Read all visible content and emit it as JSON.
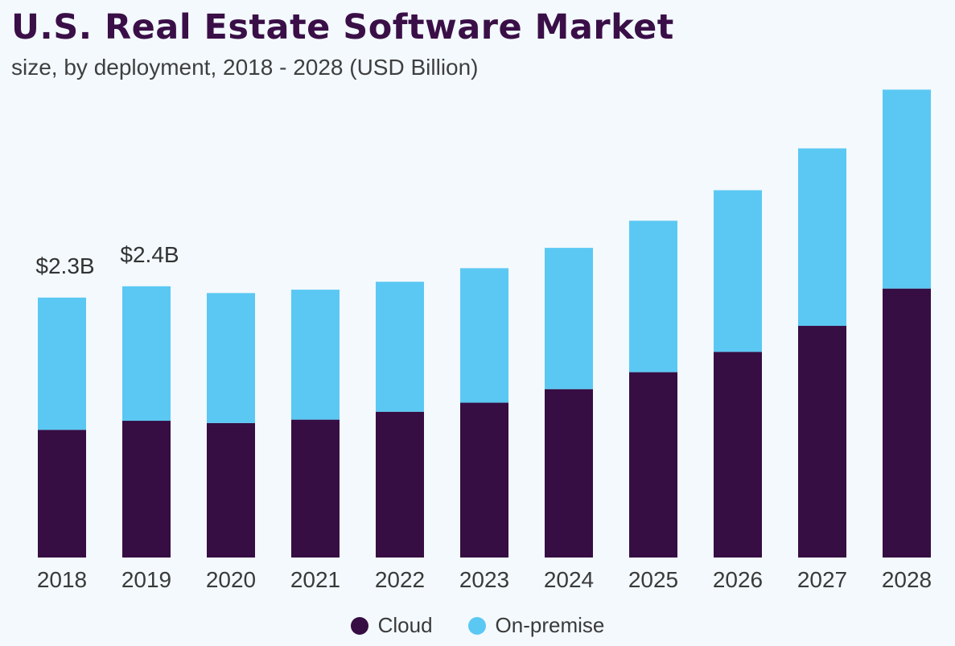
{
  "title": "U.S. Real Estate Software Market",
  "subtitle": "size, by deployment, 2018 - 2028 (USD Billion)",
  "colors": {
    "cloud": "#360e43",
    "on_premise": "#5bc8f3"
  },
  "legend": [
    {
      "label": "Cloud",
      "color": "#360e43"
    },
    {
      "label": "On-premise",
      "color": "#5bc8f3"
    }
  ],
  "chart_data": {
    "type": "bar",
    "stacked": true,
    "categories": [
      "2018",
      "2019",
      "2020",
      "2021",
      "2022",
      "2023",
      "2024",
      "2025",
      "2026",
      "2027",
      "2028"
    ],
    "series": [
      {
        "name": "Cloud",
        "values": [
          1.13,
          1.21,
          1.19,
          1.22,
          1.29,
          1.37,
          1.49,
          1.64,
          1.82,
          2.05,
          2.38
        ]
      },
      {
        "name": "On-premise",
        "values": [
          1.17,
          1.19,
          1.15,
          1.15,
          1.15,
          1.19,
          1.25,
          1.34,
          1.43,
          1.57,
          1.76
        ]
      }
    ],
    "data_labels": [
      {
        "category": "2018",
        "text": "$2.3B"
      },
      {
        "category": "2019",
        "text": "$2.4B"
      }
    ],
    "title": "U.S. Real Estate Software Market",
    "xlabel": "",
    "ylabel": "",
    "ylim": [
      0,
      4.2
    ],
    "grid": false,
    "legend_position": "bottom-center"
  }
}
